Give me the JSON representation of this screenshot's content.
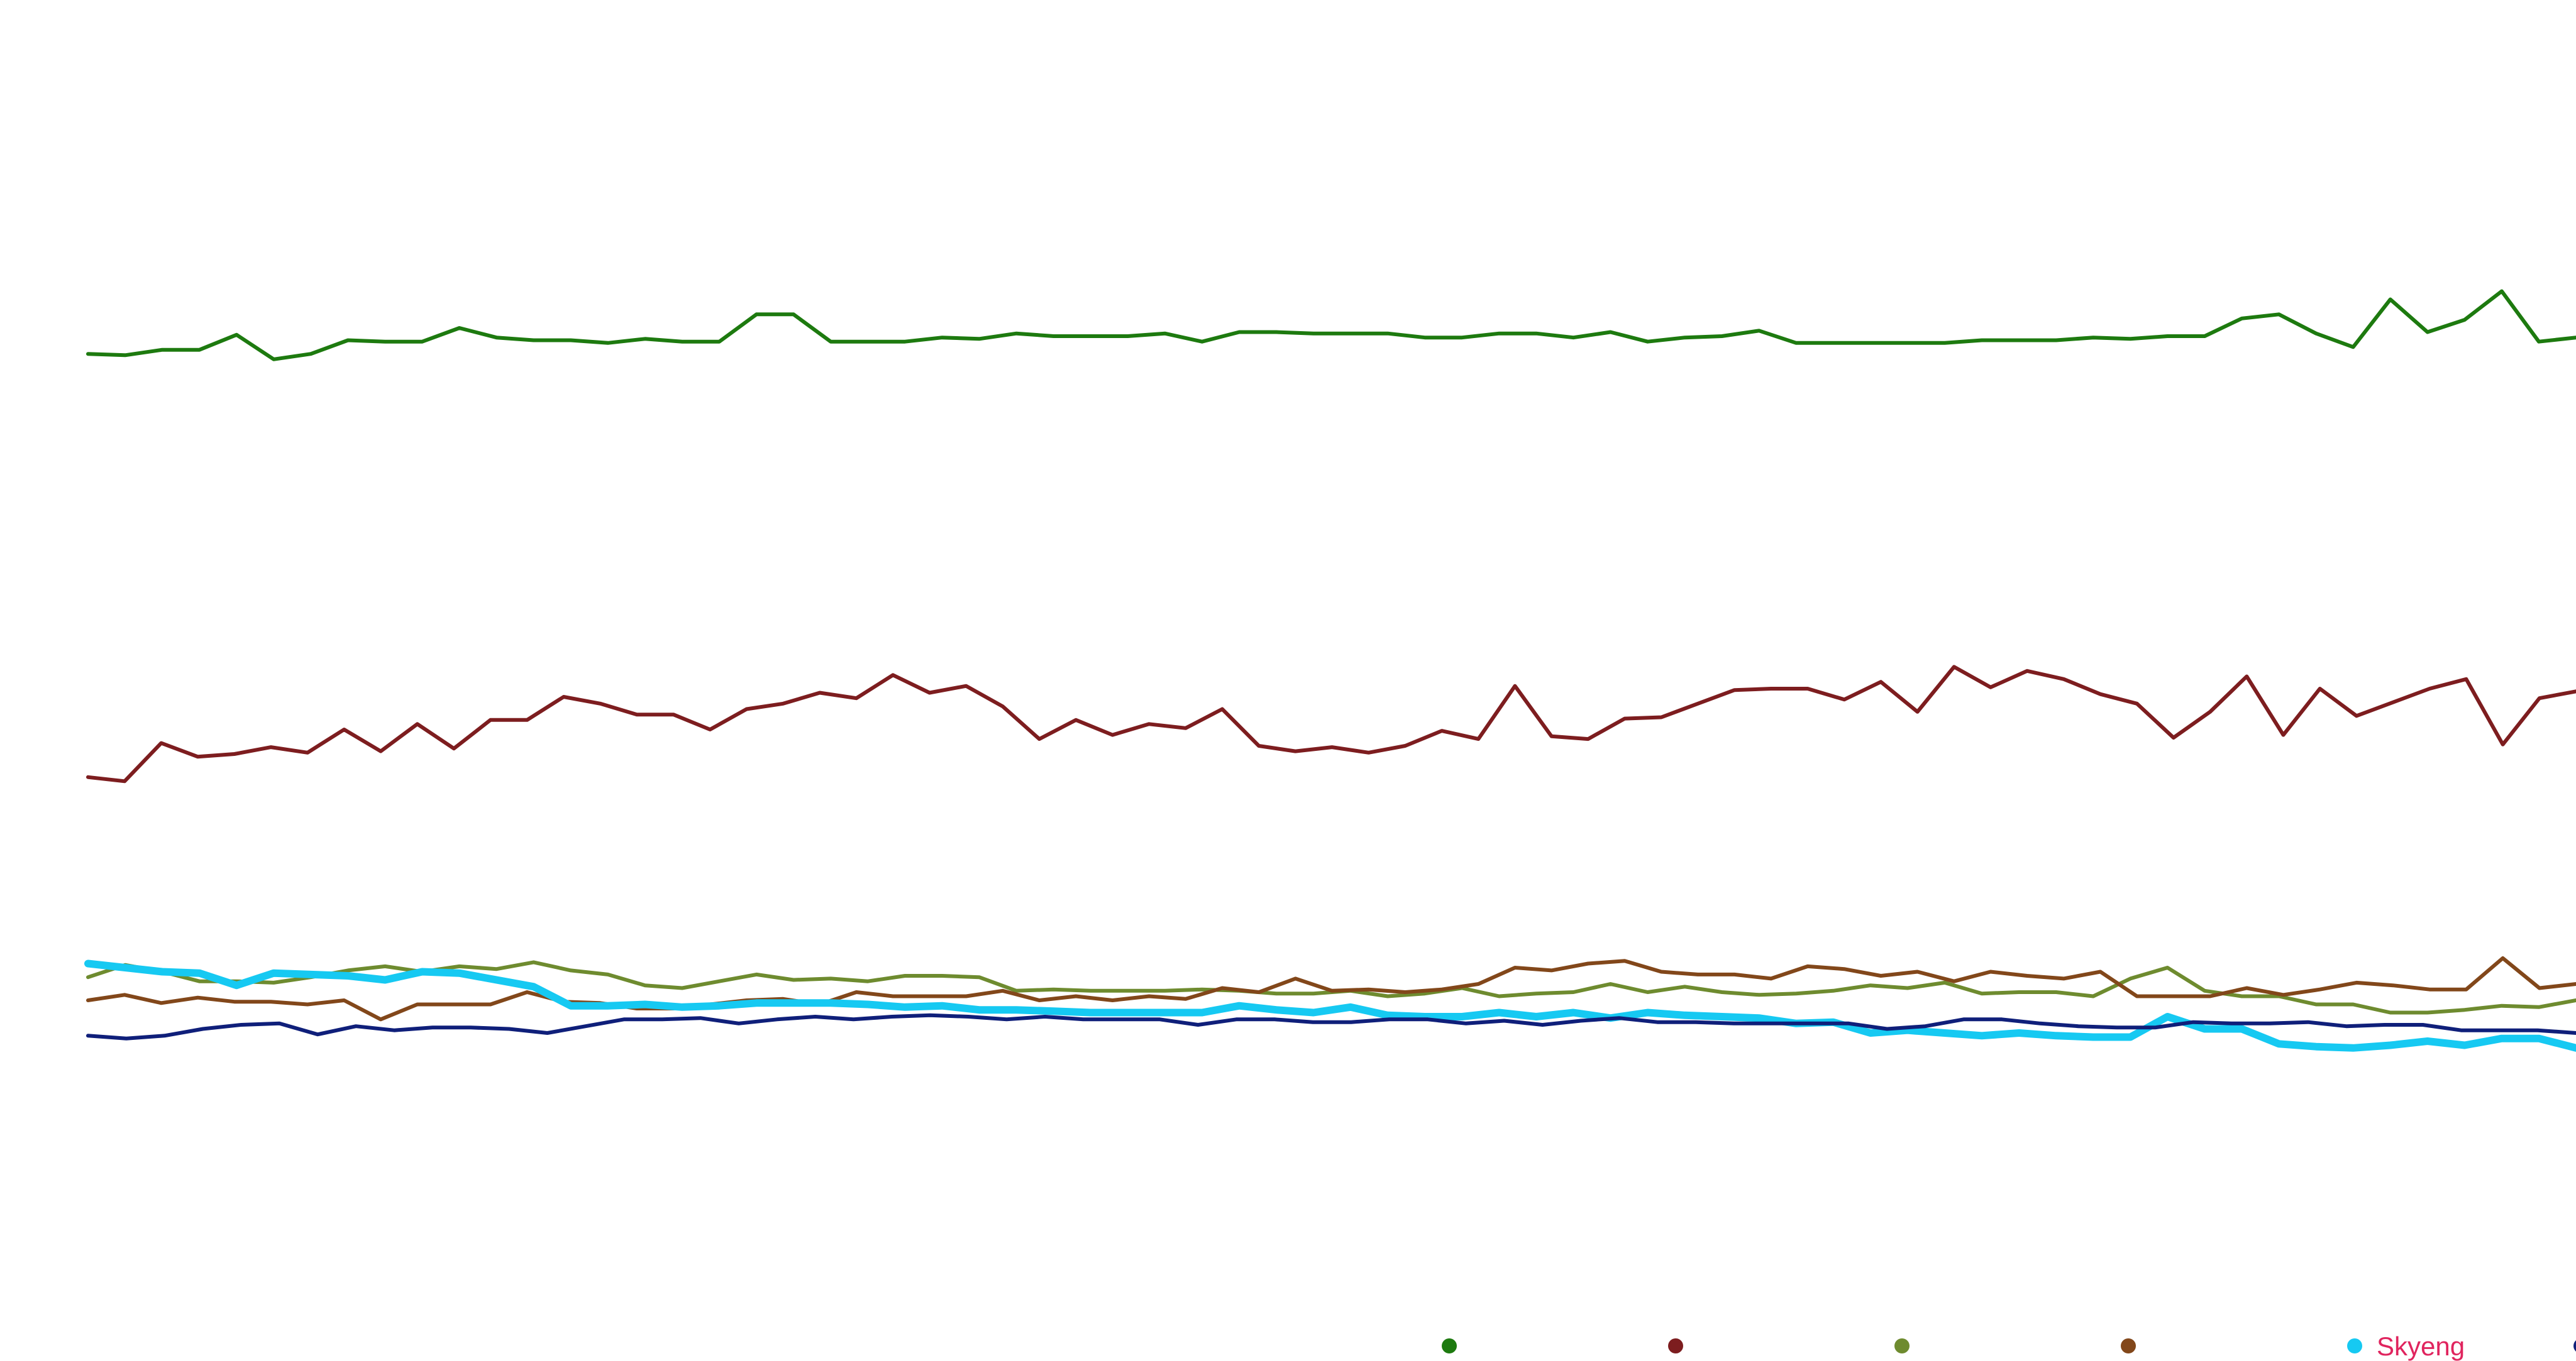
{
  "chart_data": {
    "type": "line",
    "title": "",
    "xlabel": "",
    "ylabel": "",
    "ylim": [
      0,
      100
    ],
    "grid": false,
    "legend": "bottom-right",
    "highlight_series": 4,
    "series": [
      {
        "name": "",
        "color": "#1d7a0f",
        "values": [
          74.0,
          73.9,
          74.3,
          74.3,
          75.4,
          73.6,
          74.0,
          75.0,
          74.9,
          74.9,
          75.9,
          75.2,
          75.0,
          75.0,
          74.8,
          75.1,
          74.9,
          74.9,
          76.9,
          76.9,
          74.9,
          74.9,
          74.9,
          75.2,
          75.1,
          75.5,
          75.3,
          75.3,
          75.3,
          75.5,
          74.9,
          75.6,
          75.6,
          75.5,
          75.5,
          75.5,
          75.2,
          75.2,
          75.5,
          75.5,
          75.2,
          75.6,
          74.9,
          75.2,
          75.3,
          75.7,
          74.8,
          74.8,
          74.8,
          74.8,
          74.8,
          75.0,
          75.0,
          75.0,
          75.2,
          75.1,
          75.3,
          75.3,
          76.6,
          76.9,
          75.5,
          74.5,
          78.0,
          75.6,
          76.5,
          78.6,
          74.9,
          75.2
        ]
      },
      {
        "name": "",
        "color": "#7d1d1f",
        "values": [
          42.9,
          42.6,
          45.4,
          44.4,
          44.6,
          45.1,
          44.7,
          46.4,
          44.8,
          46.8,
          45.0,
          47.1,
          47.1,
          48.8,
          48.3,
          47.5,
          47.5,
          46.4,
          47.9,
          48.3,
          49.1,
          48.7,
          50.4,
          49.1,
          49.6,
          48.1,
          45.7,
          47.1,
          46.0,
          46.8,
          46.5,
          47.9,
          45.2,
          44.8,
          45.1,
          44.7,
          45.2,
          46.3,
          45.7,
          49.6,
          45.9,
          45.7,
          47.2,
          47.3,
          48.3,
          49.3,
          49.4,
          49.4,
          48.6,
          49.9,
          47.7,
          51.0,
          49.5,
          50.7,
          50.1,
          49.0,
          48.3,
          45.8,
          47.7,
          50.3,
          46.0,
          49.4,
          47.4,
          48.4,
          49.4,
          50.1,
          45.3,
          48.7,
          49.2
        ]
      },
      {
        "name": "",
        "color": "#6e8b2f",
        "values": [
          28.2,
          29.1,
          28.6,
          27.9,
          27.9,
          27.8,
          28.2,
          28.7,
          29.0,
          28.6,
          29.0,
          28.8,
          29.3,
          28.7,
          28.4,
          27.6,
          27.4,
          27.9,
          28.4,
          28.0,
          28.1,
          27.9,
          28.3,
          28.3,
          28.2,
          27.2,
          27.3,
          27.2,
          27.2,
          27.2,
          27.3,
          27.2,
          27.0,
          27.0,
          27.2,
          26.8,
          27.0,
          27.4,
          26.8,
          27.0,
          27.1,
          27.7,
          27.1,
          27.5,
          27.1,
          26.9,
          27.0,
          27.2,
          27.6,
          27.4,
          27.8,
          27.0,
          27.1,
          27.1,
          26.8,
          28.1,
          28.9,
          27.2,
          26.8,
          26.8,
          26.2,
          26.2,
          25.6,
          25.6,
          25.8,
          26.1,
          26.0,
          26.5
        ]
      },
      {
        "name": "",
        "color": "#82471a",
        "values": [
          26.5,
          26.9,
          26.3,
          26.7,
          26.4,
          26.4,
          26.2,
          26.5,
          25.1,
          26.2,
          26.2,
          26.2,
          27.1,
          26.4,
          26.3,
          25.9,
          25.9,
          26.2,
          26.5,
          26.6,
          26.2,
          27.1,
          26.8,
          26.8,
          26.8,
          27.2,
          26.5,
          26.8,
          26.5,
          26.8,
          26.6,
          27.4,
          27.1,
          28.1,
          27.2,
          27.3,
          27.1,
          27.3,
          27.7,
          28.9,
          28.7,
          29.2,
          29.4,
          28.6,
          28.4,
          28.4,
          28.1,
          29.0,
          28.8,
          28.3,
          28.6,
          27.9,
          28.6,
          28.3,
          28.1,
          28.6,
          26.8,
          26.8,
          26.8,
          27.4,
          26.9,
          27.3,
          27.8,
          27.6,
          27.3,
          27.3,
          29.6,
          27.4,
          27.7
        ]
      },
      {
        "name": "Skyeng",
        "color": "#16c9f2",
        "values": [
          29.2,
          28.9,
          28.6,
          28.5,
          27.6,
          28.5,
          28.4,
          28.3,
          28.0,
          28.6,
          28.5,
          28.0,
          27.5,
          26.1,
          26.1,
          26.2,
          26.0,
          26.1,
          26.3,
          26.3,
          26.3,
          26.2,
          26.0,
          26.1,
          25.8,
          25.8,
          25.7,
          25.6,
          25.6,
          25.6,
          25.6,
          26.1,
          25.8,
          25.6,
          26.0,
          25.4,
          25.3,
          25.3,
          25.6,
          25.3,
          25.6,
          25.2,
          25.6,
          25.4,
          25.3,
          25.2,
          24.8,
          24.9,
          24.1,
          24.3,
          24.1,
          23.9,
          24.1,
          23.9,
          23.8,
          23.8,
          25.3,
          24.4,
          24.4,
          23.3,
          23.1,
          23.0,
          23.2,
          23.5,
          23.2,
          23.7,
          23.7,
          23.0
        ]
      },
      {
        "name": "",
        "color": "#0f1f7a",
        "values": [
          23.9,
          23.7,
          23.9,
          24.4,
          24.7,
          24.8,
          24.0,
          24.6,
          24.3,
          24.5,
          24.5,
          24.4,
          24.1,
          24.6,
          25.1,
          25.1,
          25.2,
          24.8,
          25.1,
          25.3,
          25.1,
          25.3,
          25.4,
          25.3,
          25.1,
          25.3,
          25.1,
          25.1,
          25.1,
          24.7,
          25.1,
          25.1,
          24.9,
          24.9,
          25.1,
          25.1,
          24.8,
          25.0,
          24.7,
          25.0,
          25.2,
          24.9,
          24.9,
          24.8,
          24.8,
          24.8,
          24.8,
          24.4,
          24.6,
          25.1,
          25.1,
          24.8,
          24.6,
          24.5,
          24.5,
          24.9,
          24.8,
          24.8,
          24.9,
          24.6,
          24.7,
          24.7,
          24.3,
          24.3,
          24.3,
          24.1
        ]
      }
    ]
  }
}
